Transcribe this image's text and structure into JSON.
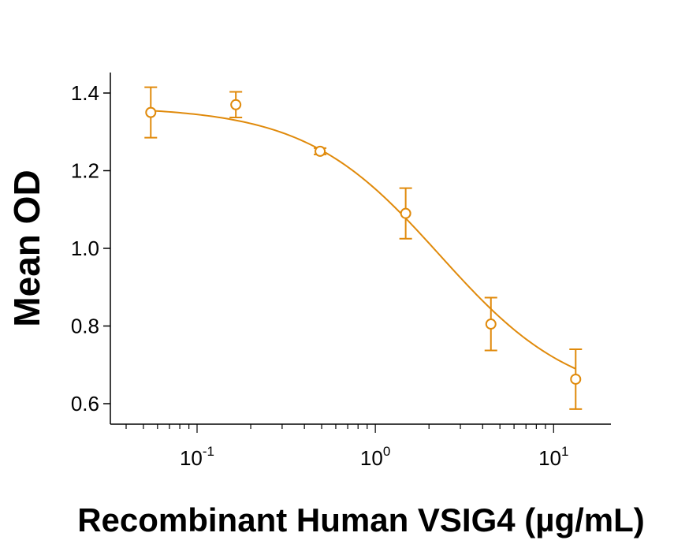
{
  "chart_data": {
    "type": "scatter",
    "xlabel": "Recombinant Human VSIG4 (µg/mL)",
    "ylabel": "Mean OD",
    "x_scale": "log",
    "xlim": [
      0.04,
      18
    ],
    "ylim": [
      0.55,
      1.45
    ],
    "x_ticks_major": [
      {
        "value": 0.1,
        "base": "10",
        "exp": "-1"
      },
      {
        "value": 1,
        "base": "10",
        "exp": "0"
      },
      {
        "value": 10,
        "base": "10",
        "exp": "1"
      }
    ],
    "y_ticks": [
      {
        "value": 0.6,
        "label": "0.6"
      },
      {
        "value": 0.8,
        "label": "0.8"
      },
      {
        "value": 1.0,
        "label": "1.0"
      },
      {
        "value": 1.2,
        "label": "1.2"
      },
      {
        "value": 1.4,
        "label": "1.4"
      }
    ],
    "grid": false,
    "legend": "none",
    "color": "#E08A0B",
    "series": [
      {
        "points": [
          {
            "x": 0.055,
            "y": 1.35,
            "err": 0.065
          },
          {
            "x": 0.165,
            "y": 1.37,
            "err": 0.033
          },
          {
            "x": 0.49,
            "y": 1.25,
            "err": 0.008
          },
          {
            "x": 1.48,
            "y": 1.09,
            "err": 0.065
          },
          {
            "x": 4.45,
            "y": 0.805,
            "err": 0.068
          },
          {
            "x": 13.3,
            "y": 0.663,
            "err": 0.077
          }
        ],
        "fit": {
          "model": "4PL",
          "top": 1.365,
          "bottom": 0.6,
          "ec50": 2.3,
          "hill": 1.15
        }
      }
    ]
  }
}
